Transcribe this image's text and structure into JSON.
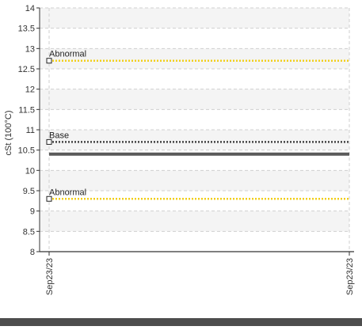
{
  "chart_data": {
    "type": "line",
    "ylabel": "cSt (100°C)",
    "ylim": [
      8,
      14
    ],
    "yticks": [
      "8",
      "8.5",
      "9",
      "9.5",
      "10",
      "10.5",
      "11",
      "11.5",
      "12",
      "12.5",
      "13",
      "13.5",
      "14"
    ],
    "x_tick_labels": [
      "Sep23/23",
      "Sep23/23"
    ],
    "grid": true,
    "series": [
      {
        "values": [
          10.4,
          10.4
        ],
        "style": "solid",
        "color": "#5a5a5a"
      }
    ],
    "reference_lines": [
      {
        "label": "Abnormal",
        "value": 12.7,
        "color": "#f2cf1a"
      },
      {
        "label": "Base",
        "value": 10.7,
        "color": "#444444"
      },
      {
        "label": "Abnormal",
        "value": 9.3,
        "color": "#f2cf1a"
      }
    ],
    "colors": {
      "band": "#f4f4f4",
      "grid": "#cfcfcf",
      "axis": "#333333",
      "text": "#333333"
    }
  }
}
